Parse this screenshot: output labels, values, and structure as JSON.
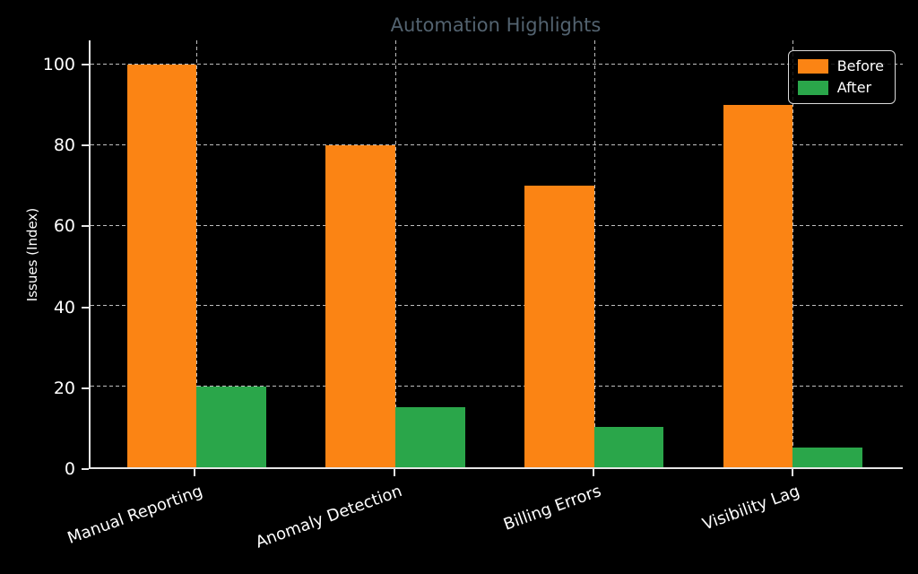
{
  "chart_data": {
    "type": "bar",
    "title": "Automation Highlights",
    "xlabel": "",
    "ylabel": "Issues (Index)",
    "categories": [
      "Manual Reporting",
      "Anomaly Detection",
      "Billing Errors",
      "Visibility Lag"
    ],
    "series": [
      {
        "name": "Before",
        "color": "#fb8414",
        "values": [
          100,
          80,
          70,
          90
        ]
      },
      {
        "name": "After",
        "color": "#2aa64a",
        "values": [
          20,
          15,
          10,
          5
        ]
      }
    ],
    "yticks": [
      0,
      20,
      40,
      60,
      80,
      100
    ],
    "ylim": [
      0,
      106
    ],
    "xlim": [
      -0.533,
      3.553
    ],
    "bar_width": 0.35,
    "grid": true,
    "grid_style": "dashed",
    "legend_position": "upper right",
    "xtick_rotation_deg": 20,
    "colors": {
      "background": "#000000",
      "text": "#ffffff",
      "title": "#536370",
      "spine": "#e6e6e6",
      "grid": "#bfbfbf"
    }
  }
}
